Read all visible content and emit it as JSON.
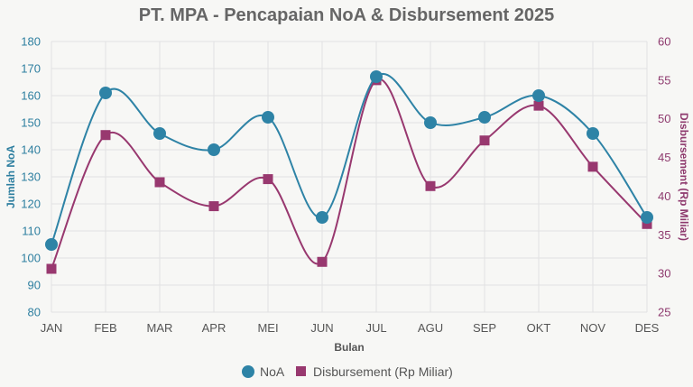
{
  "chart_data": {
    "type": "line",
    "title": "PT. MPA - Pencapaian NoA & Disbursement 2025",
    "xlabel": "Bulan",
    "ylabel_left": "Jumlah NoA",
    "ylabel_right": "Disbursement (Rp Miliar)",
    "categories": [
      "JAN",
      "FEB",
      "MAR",
      "APR",
      "MEI",
      "JUN",
      "JUL",
      "AGU",
      "SEP",
      "OKT",
      "NOV",
      "DES"
    ],
    "y_left": {
      "min": 80,
      "max": 180,
      "step": 10,
      "ticks": [
        "80",
        "90",
        "100",
        "110",
        "120",
        "130",
        "140",
        "150",
        "160",
        "170",
        "180"
      ]
    },
    "y_right": {
      "min": 25,
      "max": 60,
      "step": 5,
      "ticks": [
        "25",
        "30",
        "35",
        "40",
        "45",
        "50",
        "55",
        "60"
      ]
    },
    "grid": true,
    "legend_position": "bottom-center",
    "series": [
      {
        "name": "NoA",
        "axis": "left",
        "color": "#2e83a6",
        "marker": "circle",
        "values": [
          105,
          161,
          146,
          140,
          152,
          115,
          167,
          150,
          152,
          160,
          146,
          115
        ]
      },
      {
        "name": "Disbursement (Rp Miliar)",
        "axis": "right",
        "color": "#98386f",
        "marker": "square",
        "values": [
          30.6,
          47.9,
          41.8,
          38.7,
          42.2,
          31.5,
          55.0,
          41.3,
          47.2,
          51.7,
          43.8,
          36.4
        ]
      }
    ]
  }
}
